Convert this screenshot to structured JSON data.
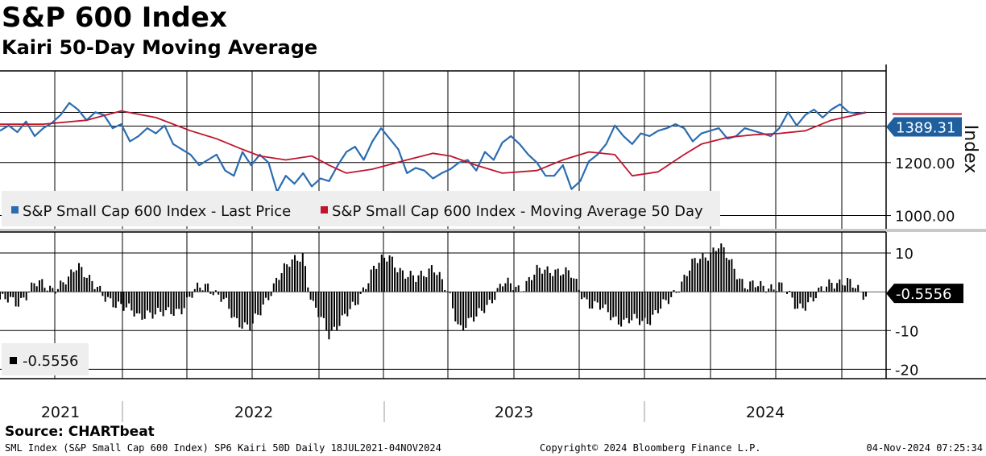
{
  "header": {
    "title": "S&P 600 Index",
    "subtitle": "Kairi 50-Day Moving Average"
  },
  "footer": {
    "source": "Source: CHARTbeat",
    "description": "SML Index (S&P Small Cap 600 Index) SP6 Kairi 50D  Daily 18JUL2021-04NOV2024",
    "copyright": "Copyright© 2024 Bloomberg Finance L.P.",
    "timestamp": "04-Nov-2024 07:25:34"
  },
  "colors": {
    "price": "#2b6cb0",
    "ma": "#c0152f",
    "kairi": "#000000",
    "label_bg": "#1f5f9e"
  },
  "chart_data": [
    {
      "type": "line",
      "panel": "upper",
      "ylabel": "Index",
      "ylim": [
        950,
        1540
      ],
      "yticks": [
        1000,
        1200
      ],
      "ytick_labels": [
        "1000.00",
        "1200.00"
      ],
      "x_range": [
        "2021-07-18",
        "2024-11-04"
      ],
      "last_value_label": "1389.31",
      "series": [
        {
          "name": "S&P Small Cap 600 Index - Last Price",
          "legend": "S&P Small Cap 600 Index - Last Price",
          "color": "#2b6cb0",
          "x": [
            0,
            0.01,
            0.02,
            0.03,
            0.04,
            0.05,
            0.06,
            0.07,
            0.08,
            0.09,
            0.1,
            0.11,
            0.12,
            0.13,
            0.14,
            0.15,
            0.16,
            0.17,
            0.18,
            0.19,
            0.2,
            0.21,
            0.22,
            0.23,
            0.24,
            0.25,
            0.26,
            0.27,
            0.28,
            0.29,
            0.3,
            0.31,
            0.32,
            0.33,
            0.34,
            0.35,
            0.36,
            0.37,
            0.38,
            0.39,
            0.4,
            0.41,
            0.42,
            0.43,
            0.44,
            0.45,
            0.46,
            0.47,
            0.48,
            0.49,
            0.5,
            0.51,
            0.52,
            0.53,
            0.54,
            0.55,
            0.56,
            0.57,
            0.58,
            0.59,
            0.6,
            0.61,
            0.62,
            0.63,
            0.64,
            0.65,
            0.66,
            0.67,
            0.68,
            0.69,
            0.7,
            0.71,
            0.72,
            0.73,
            0.74,
            0.75,
            0.76,
            0.77,
            0.78,
            0.79,
            0.8,
            0.81,
            0.82,
            0.83,
            0.84,
            0.85,
            0.86,
            0.87,
            0.88,
            0.89,
            0.9,
            0.91,
            0.92,
            0.93,
            0.94,
            0.95,
            0.96,
            0.97,
            0.98,
            0.99,
            1.0
          ],
          "values": [
            1320,
            1340,
            1315,
            1355,
            1300,
            1330,
            1350,
            1380,
            1425,
            1400,
            1360,
            1390,
            1380,
            1330,
            1345,
            1280,
            1300,
            1330,
            1310,
            1340,
            1270,
            1250,
            1230,
            1190,
            1210,
            1230,
            1170,
            1150,
            1240,
            1190,
            1230,
            1200,
            1090,
            1150,
            1120,
            1160,
            1110,
            1140,
            1130,
            1190,
            1240,
            1260,
            1210,
            1280,
            1330,
            1290,
            1250,
            1160,
            1180,
            1170,
            1140,
            1160,
            1175,
            1200,
            1210,
            1170,
            1240,
            1210,
            1275,
            1300,
            1270,
            1230,
            1200,
            1150,
            1150,
            1190,
            1100,
            1130,
            1205,
            1230,
            1270,
            1340,
            1300,
            1270,
            1310,
            1300,
            1320,
            1330,
            1345,
            1330,
            1280,
            1310,
            1320,
            1330,
            1290,
            1300,
            1330,
            1320,
            1310,
            1300,
            1330,
            1390,
            1340,
            1380,
            1400,
            1370,
            1400,
            1420,
            1390,
            1385,
            1389.31
          ]
        },
        {
          "name": "S&P Small Cap 600 Index - Moving Average 50 Day",
          "legend": "S&P Small Cap 600 Index - Moving Average 50 Day",
          "color": "#c0152f",
          "x": [
            0,
            0.05,
            0.1,
            0.14,
            0.18,
            0.22,
            0.25,
            0.28,
            0.3,
            0.33,
            0.36,
            0.38,
            0.4,
            0.43,
            0.47,
            0.5,
            0.52,
            0.55,
            0.58,
            0.62,
            0.65,
            0.68,
            0.71,
            0.73,
            0.76,
            0.79,
            0.81,
            0.84,
            0.87,
            0.9,
            0.93,
            0.96,
            1.0
          ],
          "values": [
            1345,
            1345,
            1360,
            1395,
            1370,
            1320,
            1290,
            1250,
            1225,
            1210,
            1225,
            1190,
            1160,
            1175,
            1210,
            1235,
            1225,
            1190,
            1160,
            1170,
            1210,
            1240,
            1230,
            1150,
            1165,
            1230,
            1270,
            1295,
            1305,
            1310,
            1320,
            1360,
            1389
          ]
        }
      ]
    },
    {
      "type": "bar",
      "panel": "lower",
      "series_name": "Kairi 50D",
      "legend": "-0.5556",
      "last_value_label": "-0.5556",
      "ylim": [
        -22,
        15
      ],
      "yticks": [
        10,
        -10,
        -20
      ],
      "ytick_labels": [
        "10",
        "-10",
        "-20"
      ],
      "x": [
        0,
        0.02,
        0.04,
        0.06,
        0.08,
        0.09,
        0.1,
        0.12,
        0.14,
        0.16,
        0.17,
        0.19,
        0.21,
        0.23,
        0.24,
        0.26,
        0.27,
        0.29,
        0.3,
        0.32,
        0.33,
        0.35,
        0.36,
        0.38,
        0.39,
        0.41,
        0.43,
        0.45,
        0.47,
        0.48,
        0.5,
        0.52,
        0.53,
        0.55,
        0.56,
        0.58,
        0.6,
        0.62,
        0.64,
        0.66,
        0.68,
        0.7,
        0.72,
        0.75,
        0.77,
        0.8,
        0.83,
        0.86,
        0.88,
        0.9,
        0.92,
        0.94,
        0.96,
        0.98,
        1.0
      ],
      "values": [
        -2,
        -3,
        2,
        1,
        3,
        7,
        5,
        -2,
        -3,
        -7,
        -5,
        -6,
        -4,
        1,
        2,
        -3,
        -7,
        -9,
        -6,
        4,
        6,
        10,
        -3,
        -11,
        -8,
        -4,
        6,
        9,
        4,
        3,
        7,
        -2,
        -9,
        -7,
        -4,
        2,
        1,
        5,
        6,
        4,
        -3,
        -5,
        -8,
        -7,
        -3,
        7,
        12,
        2,
        1,
        2,
        -4,
        -2,
        3,
        2,
        -0.5556
      ]
    }
  ],
  "x_axis": {
    "year_labels": [
      "2021",
      "2022",
      "2023",
      "2024"
    ]
  }
}
